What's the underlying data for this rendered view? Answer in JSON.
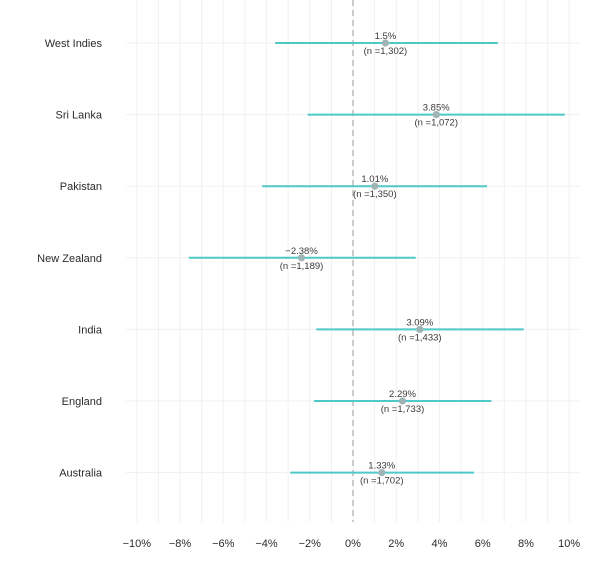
{
  "colors": {
    "ci_line": "#4fc8c8",
    "point": "#9fb5b5",
    "zero_line": "#a9a9a9",
    "grid": "#f1f1f1"
  },
  "chart_data": {
    "type": "forest",
    "title": "",
    "xlabel": "",
    "ylabel": "",
    "xlim": [
      -10.5,
      10.5
    ],
    "x_ticks": [
      -10,
      -8,
      -6,
      -4,
      -2,
      0,
      2,
      4,
      6,
      8,
      10
    ],
    "x_tick_labels": [
      "−10%",
      "−8%",
      "−6%",
      "−4%",
      "−2%",
      "0%",
      "2%",
      "4%",
      "6%",
      "8%",
      "10%"
    ],
    "zero_line": 0,
    "rows": [
      {
        "name": "West Indies",
        "value": 1.5,
        "low": -3.6,
        "high": 6.7,
        "label": "1.5%",
        "n_label": "(n =1,302)"
      },
      {
        "name": "Sri Lanka",
        "value": 3.85,
        "low": -2.1,
        "high": 9.8,
        "label": "3.85%",
        "n_label": "(n =1,072)"
      },
      {
        "name": "Pakistan",
        "value": 1.01,
        "low": -4.2,
        "high": 6.2,
        "label": "1.01%",
        "n_label": "(n =1,350)"
      },
      {
        "name": "New Zealand",
        "value": -2.38,
        "low": -7.6,
        "high": 2.9,
        "label": "−2.38%",
        "n_label": "(n =1,189)"
      },
      {
        "name": "India",
        "value": 3.09,
        "low": -1.7,
        "high": 7.9,
        "label": "3.09%",
        "n_label": "(n =1,433)"
      },
      {
        "name": "England",
        "value": 2.29,
        "low": -1.8,
        "high": 6.4,
        "label": "2.29%",
        "n_label": "(n =1,733)"
      },
      {
        "name": "Australia",
        "value": 1.33,
        "low": -2.9,
        "high": 5.6,
        "label": "1.33%",
        "n_label": "(n =1,702)"
      }
    ]
  }
}
